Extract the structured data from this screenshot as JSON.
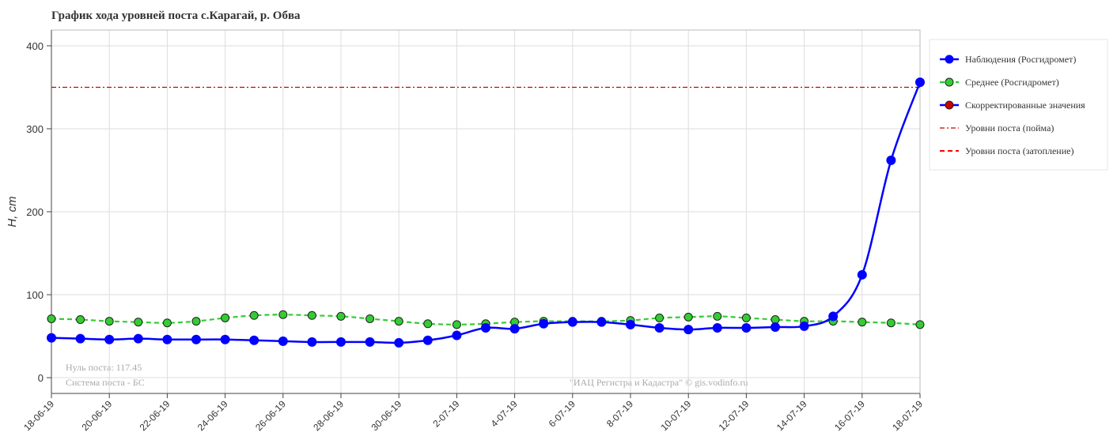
{
  "chart_data": {
    "type": "line",
    "title": "График хода уровней поста с.Карагай, р. Обва",
    "y_label": "H, cm",
    "categories": [
      "18-06-19",
      null,
      "20-06-19",
      null,
      "22-06-19",
      null,
      "24-06-19",
      null,
      "26-06-19",
      null,
      "28-06-19",
      null,
      "30-06-19",
      null,
      "2-07-19",
      null,
      "4-07-19",
      null,
      "6-07-19",
      null,
      "8-07-19",
      null,
      "10-07-19",
      null,
      "12-07-19",
      null,
      "14-07-19",
      null,
      "16-07-19",
      null,
      "18-07-19"
    ],
    "series": [
      {
        "name": "Наблюдения (Росгидромет)",
        "color": "#0000ff",
        "dash": "solid",
        "values": [
          48,
          47,
          46,
          47,
          46,
          46,
          46,
          45,
          44,
          43,
          43,
          43,
          42,
          45,
          51,
          60,
          59,
          65,
          67,
          67,
          64,
          60,
          58,
          60,
          60,
          61,
          62,
          74,
          124,
          262,
          356
        ]
      },
      {
        "name": "Среднее (Росгидромет)",
        "color": "#33cc33",
        "dash": "dashed",
        "values": [
          71,
          70,
          68,
          67,
          66,
          68,
          72,
          75,
          76,
          75,
          74,
          71,
          68,
          65,
          64,
          65,
          67,
          68,
          68,
          68,
          69,
          72,
          73,
          74,
          72,
          70,
          68,
          68,
          67,
          66,
          64
        ]
      },
      {
        "name": "Скорректированные значения",
        "color": "#cc0000",
        "dash": "solid",
        "values": [
          null,
          null,
          null,
          null,
          null,
          null,
          null,
          null,
          null,
          null,
          null,
          null,
          null,
          null,
          null,
          null,
          null,
          null,
          null,
          null,
          null,
          null,
          null,
          null,
          null,
          null,
          null,
          null,
          null,
          null,
          null
        ]
      }
    ],
    "levels": [
      {
        "name": "Уровни поста (пойма)",
        "color": "#cc0000",
        "value": 350,
        "dash": "dashdot"
      },
      {
        "name": "Уровни поста (затопление)",
        "color": "#ff0000",
        "value": null,
        "dash": "dashed"
      }
    ],
    "ylim": [
      -19,
      419
    ],
    "yticks": [
      0,
      100,
      200,
      300,
      400
    ],
    "grid": true,
    "legend": "right",
    "annotations": [
      "Нуль поста: 117.45",
      "Система поста - БС",
      "\"ИАЦ Регистра и Кадастра\" © gis.vodinfo.ru"
    ]
  }
}
